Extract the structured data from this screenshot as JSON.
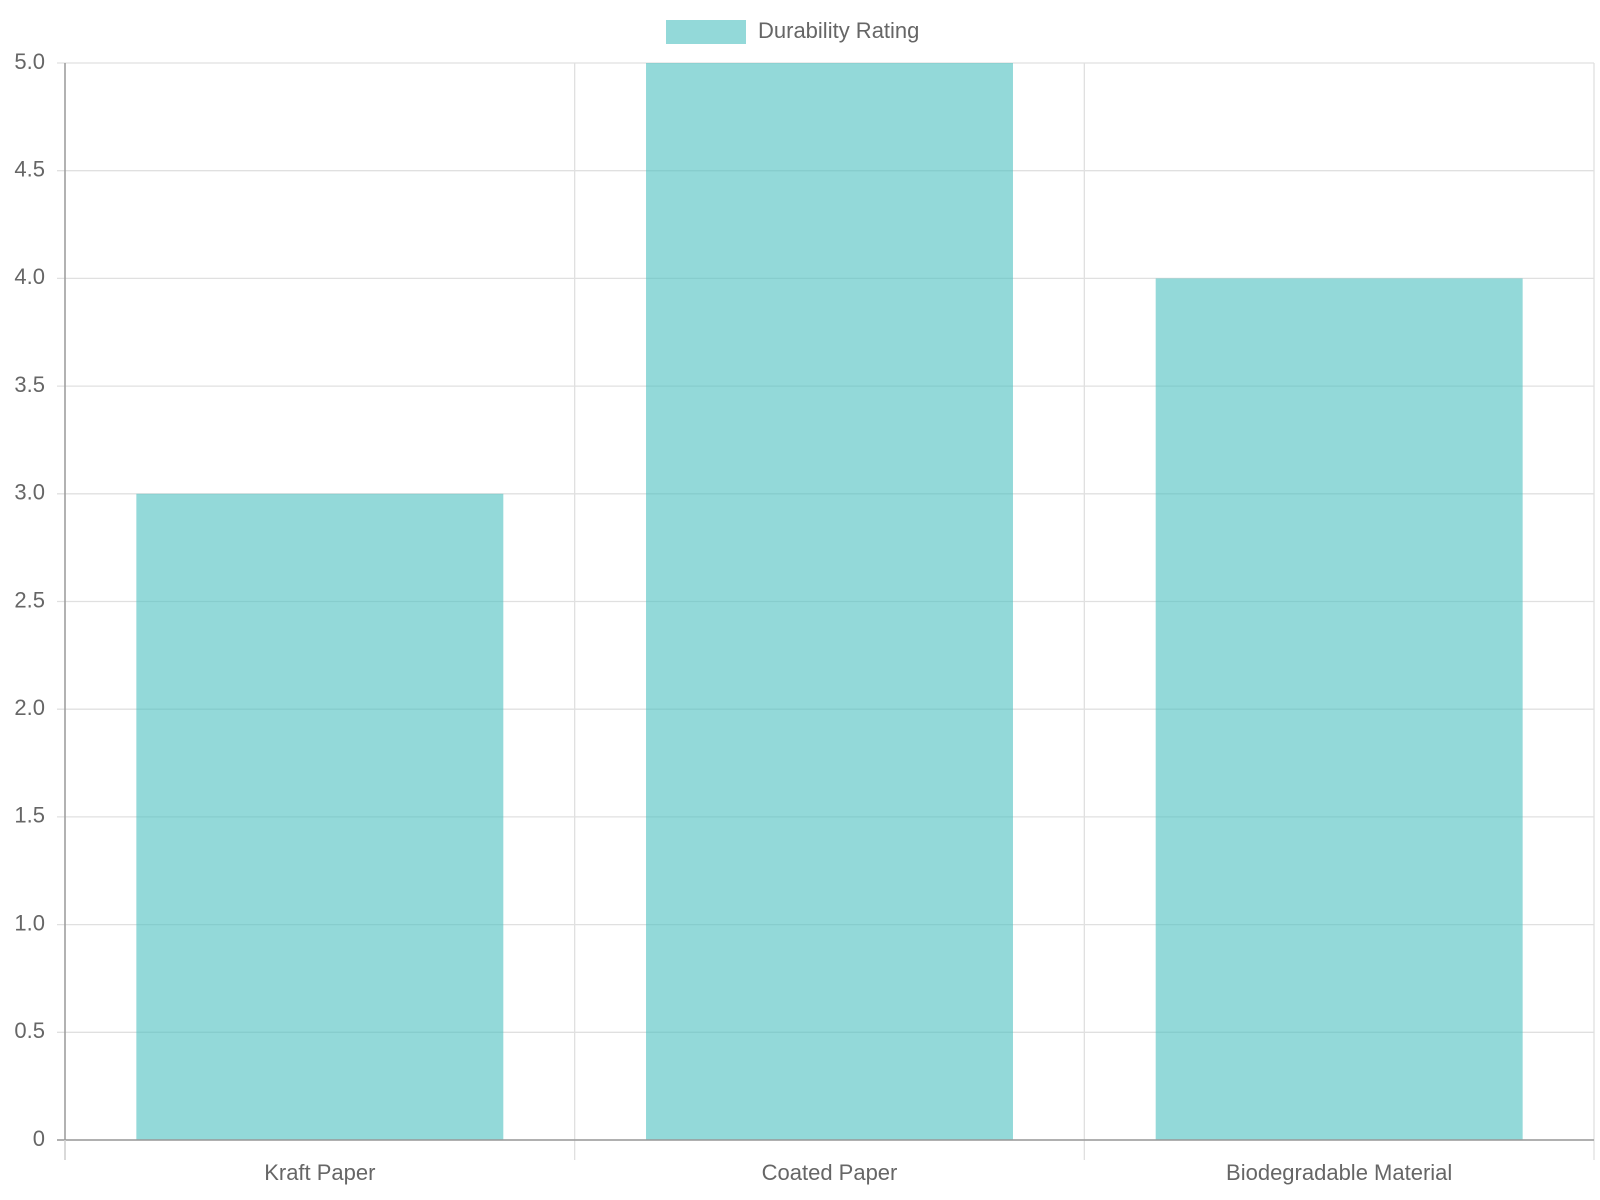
{
  "chart_data": {
    "type": "bar",
    "categories": [
      "Kraft Paper",
      "Coated Paper",
      "Biodegradable Material"
    ],
    "series": [
      {
        "name": "Durability Rating",
        "color": "#4bc0c0",
        "values": [
          3,
          5,
          4
        ]
      }
    ],
    "ylim": [
      0,
      5
    ],
    "yticks": [
      0,
      0.5,
      {
        "value": 1,
        "label": "1.0"
      },
      1.5,
      {
        "value": 2,
        "label": "2.0"
      },
      2.5,
      {
        "value": 3,
        "label": "3.0"
      },
      3.5,
      {
        "value": 4,
        "label": "4.0"
      },
      4.5,
      {
        "value": 5,
        "label": "5.0"
      }
    ],
    "grid": true,
    "legend": "top"
  }
}
